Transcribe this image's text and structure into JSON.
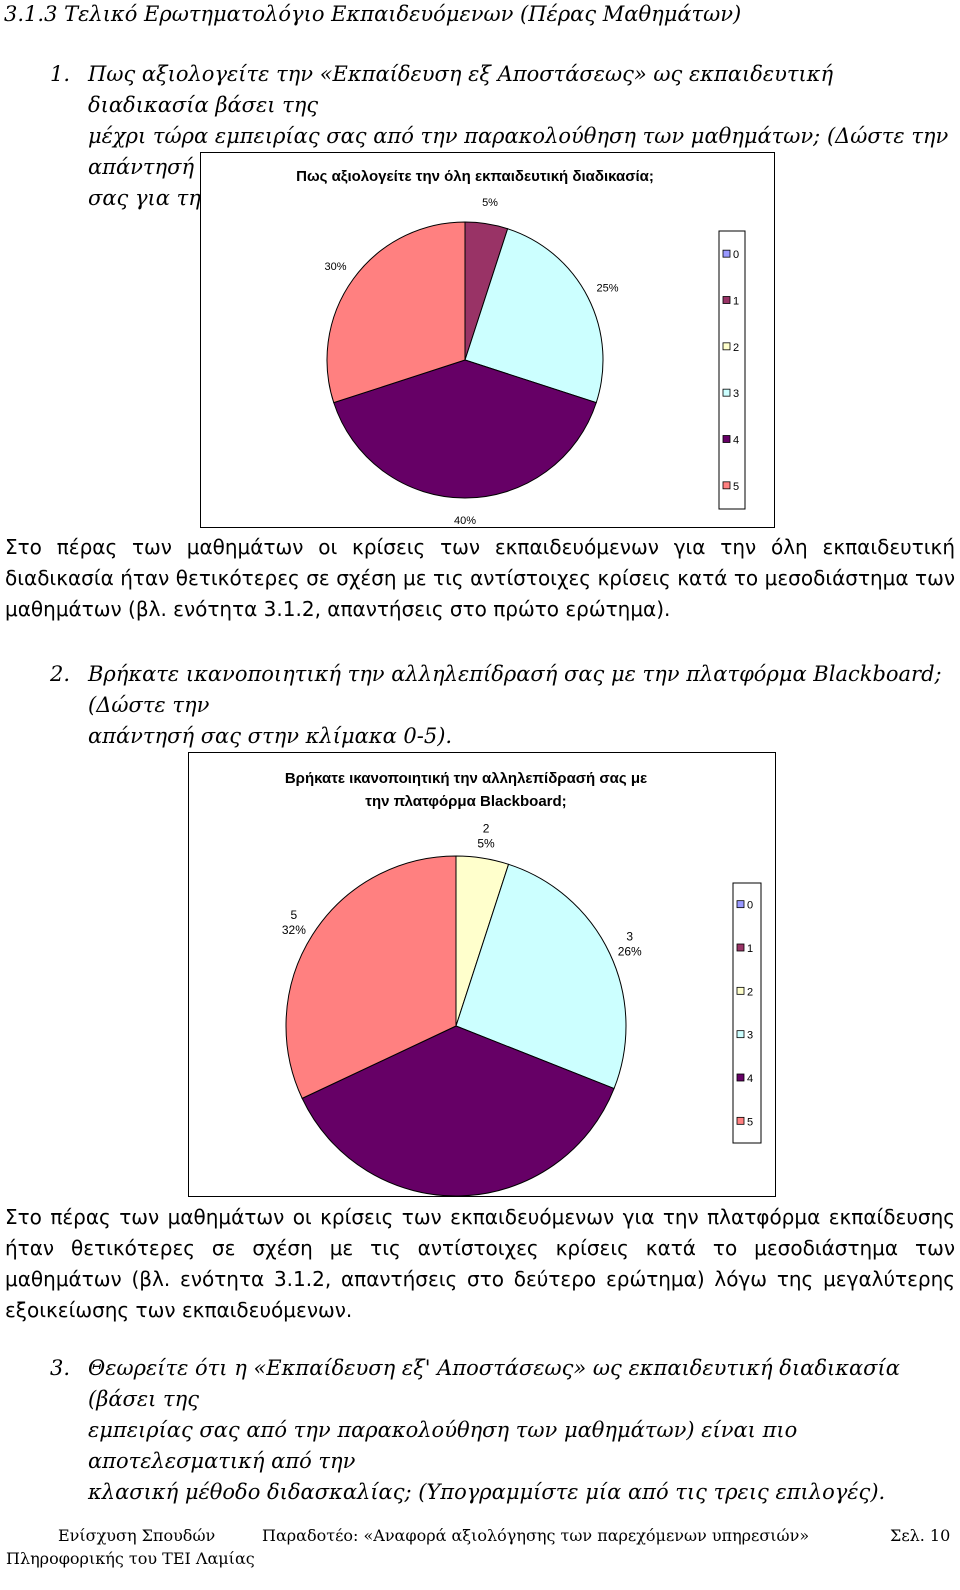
{
  "heading": "3.1.3 Τελικό Ερωτηματολόγιο Εκπαιδευόμενων (Πέρας Μαθημάτων)",
  "questions": [
    {
      "num": "1.",
      "lines": [
        "Πως αξιολογείτε την «Εκπαίδευση εξ Αποστάσεως» ως εκπαιδευτική διαδικασία βάσει της",
        "μέχρι τώρα εμπειρίας σας από την παρακολούθηση των μαθημάτων; (Δώστε την απάντησή",
        "σας για την αξιολόγηση στην κλίμακα 0-5)."
      ]
    },
    {
      "num": "2.",
      "lines": [
        "Βρήκατε ικανοποιητική την αλληλεπίδρασή σας με την πλατφόρμα Blackboard; (Δώστε την",
        "απάντησή σας στην κλίμακα 0-5)."
      ]
    },
    {
      "num": "3.",
      "lines": [
        "Θεωρείτε ότι η «Εκπαίδευση εξ' Αποστάσεως» ως εκπαιδευτική διαδικασία (βάσει της",
        "εμπειρίας σας από την παρακολούθηση των μαθημάτων) είναι πιο αποτελεσματική από την",
        "κλασική μέθοδο διδασκαλίας; (Υπογραμμίστε μία από τις τρεις επιλογές)."
      ]
    }
  ],
  "paragraphs": [
    "Στο πέρας των μαθημάτων οι κρίσεις των εκπαιδευόμενων για την όλη εκπαιδευτική διαδικασία ήταν θετικότερες σε σχέση με τις αντίστοιχες κρίσεις κατά το μεσοδιάστημα των μαθημάτων (βλ. ενότητα 3.1.2, απαντήσεις στο πρώτο ερώτημα).",
    "Στο πέρας των μαθημάτων οι κρίσεις των εκπαιδευόμενων για την πλατφόρμα εκπαίδευσης ήταν θετικότερες σε σχέση με τις αντίστοιχες κρίσεις κατά το μεσοδιάστημα των μαθημάτων (βλ. ενότητα 3.1.2, απαντήσεις στο δεύτερο ερώτημα) λόγω της μεγαλύτερης εξοικείωσης των εκπαιδευόμενων."
  ],
  "chart_data": [
    {
      "type": "pie",
      "title": [
        "Πως αξιολογείτε την όλη εκπαιδευτική διαδικασία;"
      ],
      "legend": [
        "0",
        "1",
        "2",
        "3",
        "4",
        "5"
      ],
      "legend_colors": [
        "#9999ff",
        "#993366",
        "#ffffcc",
        "#ccffff",
        "#660066",
        "#ff8080"
      ],
      "slices": [
        {
          "category": "1",
          "value": 5,
          "label": "5%",
          "color": "#993366"
        },
        {
          "category": "3",
          "value": 25,
          "label": "25%",
          "color": "#ccffff"
        },
        {
          "category": "4",
          "value": 40,
          "label": "40%",
          "color": "#660066"
        },
        {
          "category": "5",
          "value": 30,
          "label": "30%",
          "color": "#ff8080"
        }
      ],
      "legend_placement": "right"
    },
    {
      "type": "pie",
      "title": [
        "Βρήκατε ικανοποιητική την αλληλεπίδρασή σας με",
        "την πλατφόρμα Blackboard;"
      ],
      "legend": [
        "0",
        "1",
        "2",
        "3",
        "4",
        "5"
      ],
      "legend_colors": [
        "#9999ff",
        "#993366",
        "#ffffcc",
        "#ccffff",
        "#660066",
        "#ff8080"
      ],
      "slices": [
        {
          "category": "2",
          "value": 5,
          "label": "5%",
          "color": "#ffffcc"
        },
        {
          "category": "3",
          "value": 26,
          "label": "26%",
          "color": "#ccffff"
        },
        {
          "category": "4",
          "value": 37,
          "label": "37%",
          "color": "#660066"
        },
        {
          "category": "5",
          "value": 32,
          "label": "32%",
          "color": "#ff8080"
        }
      ],
      "legend_placement": "right"
    }
  ],
  "footer": {
    "left_line1": "Ενίσχυση Σπουδών",
    "left_line2": "Πληροφορικής του ΤΕΙ Λαμίας",
    "center": "Παραδοτέο: «Αναφορά αξιολόγησης των παρεχόμενων υπηρεσιών»",
    "right": "Σελ. 10"
  }
}
